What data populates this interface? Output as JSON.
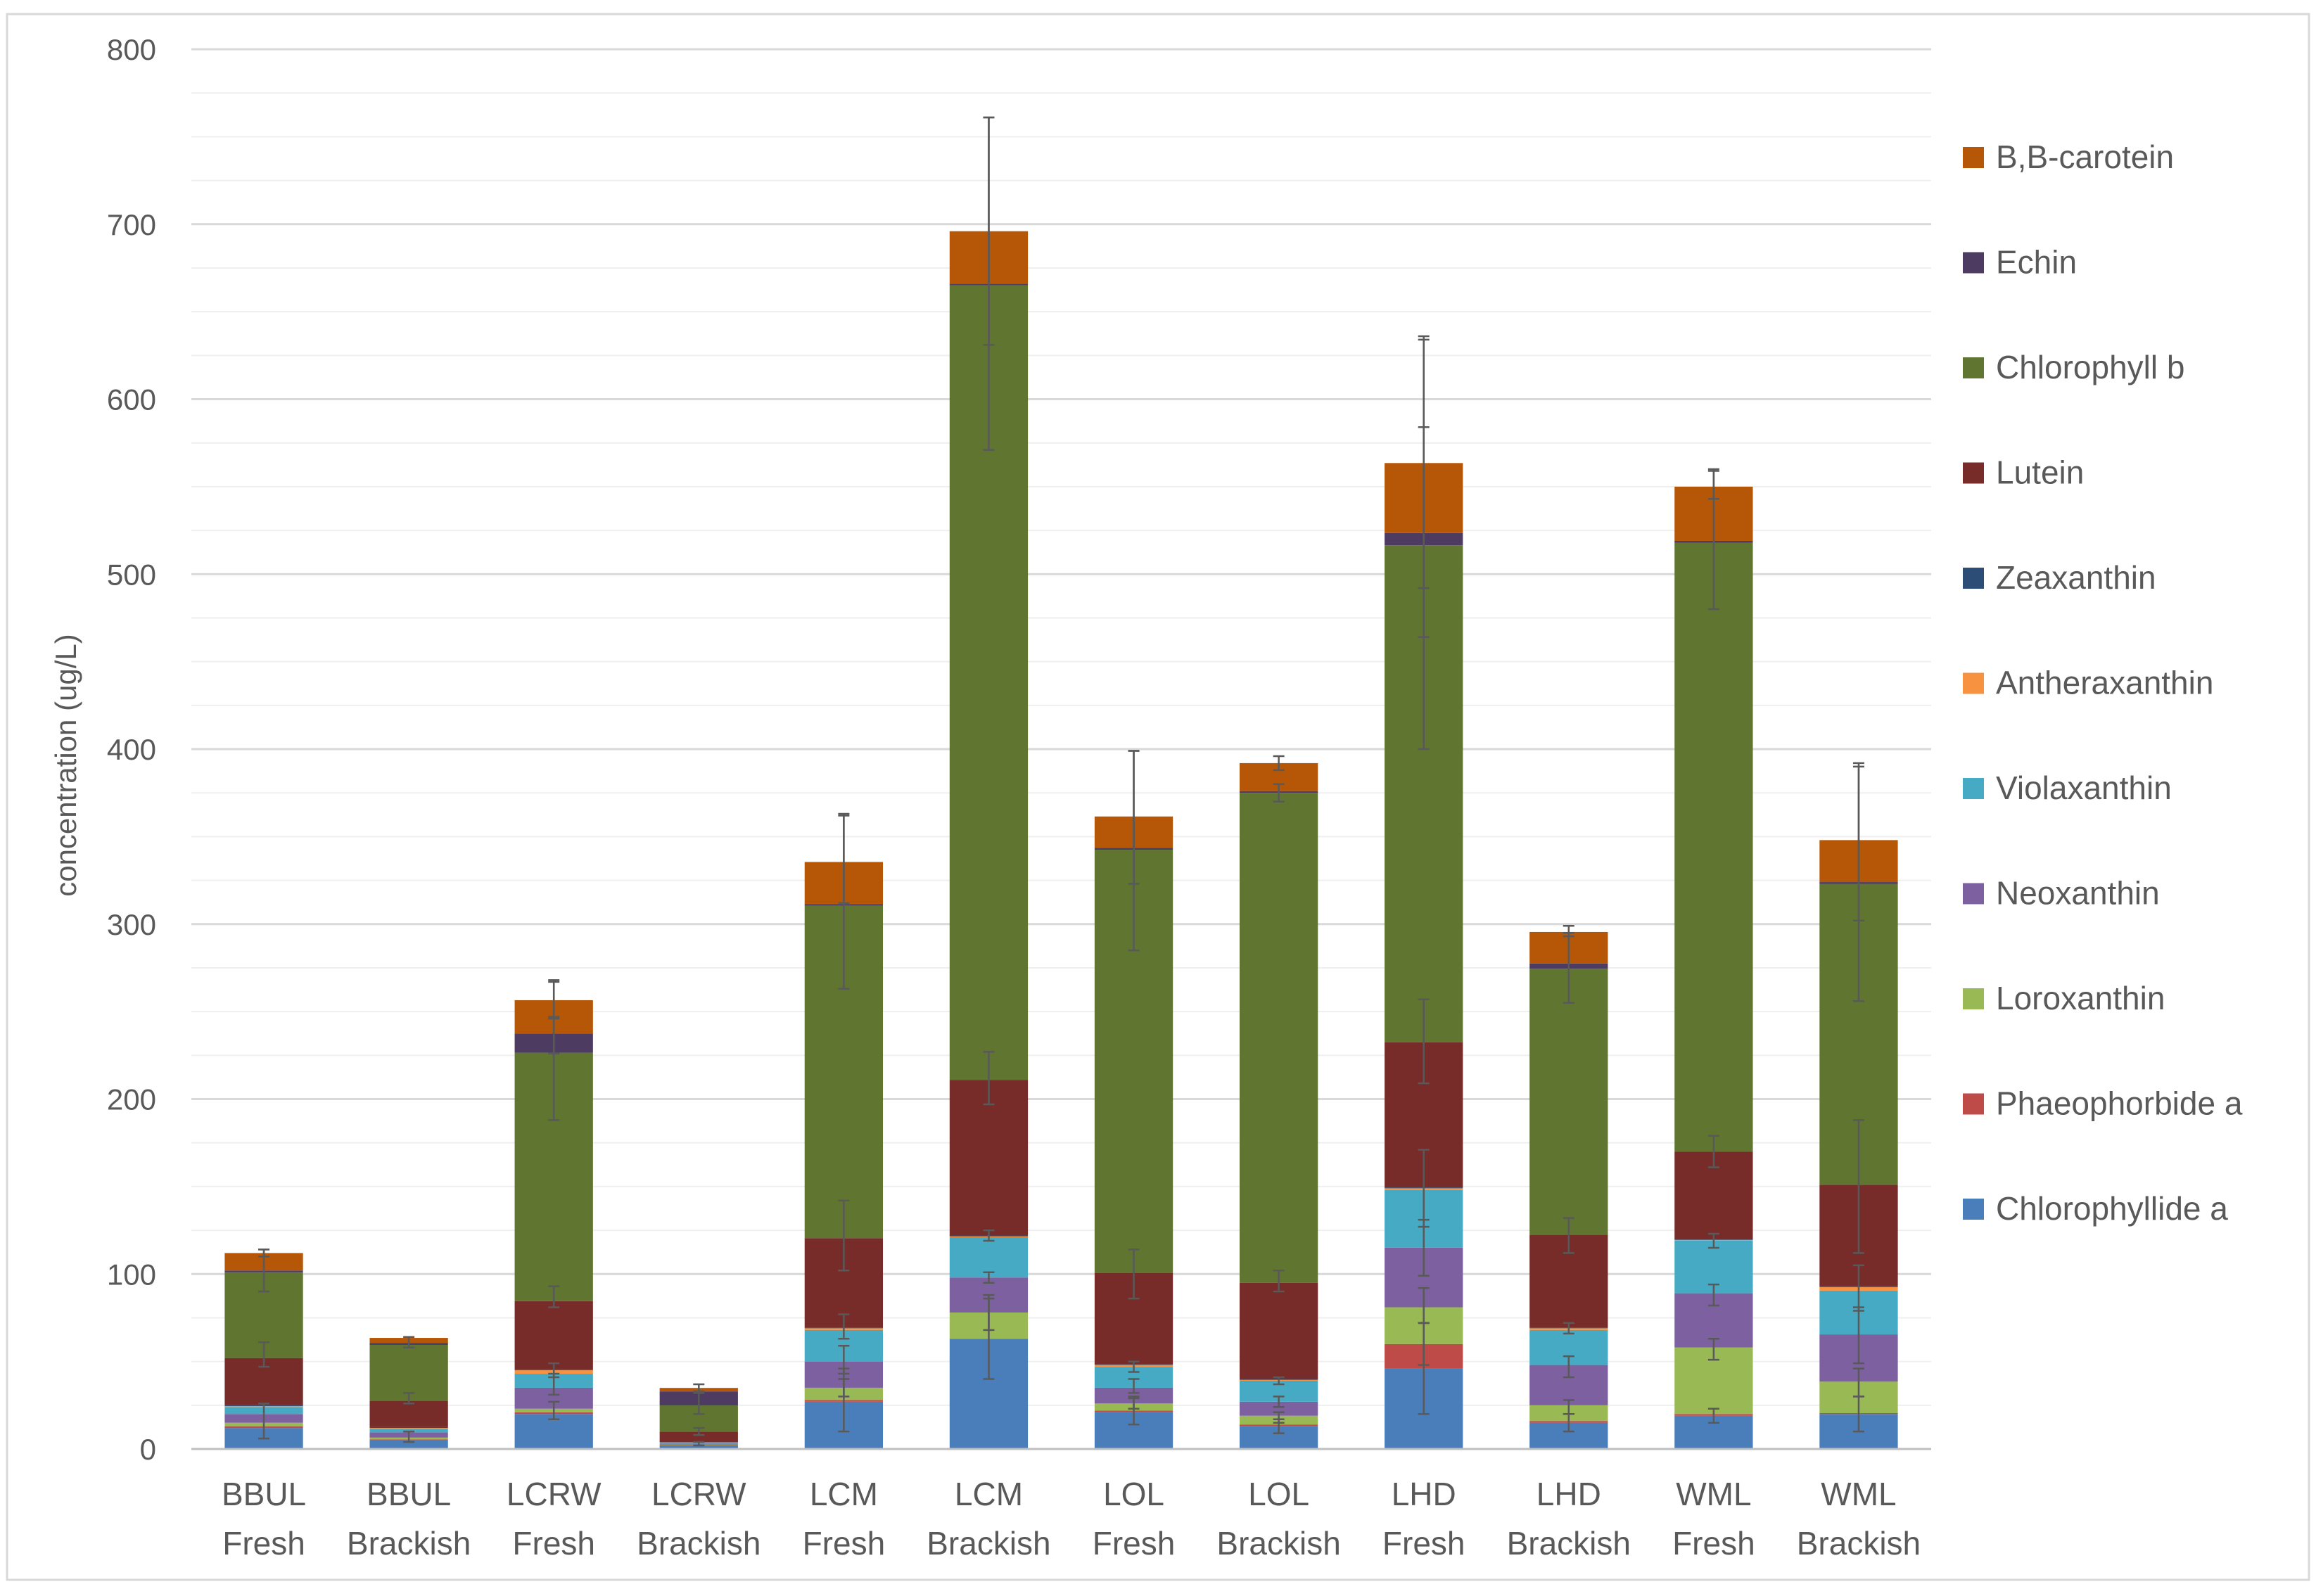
{
  "chart_data": {
    "type": "bar",
    "stacked": true,
    "title": "",
    "xlabel": "",
    "ylabel": "concentration (ug/L)",
    "ylim": [
      0,
      800
    ],
    "yticks": [
      0,
      100,
      200,
      300,
      400,
      500,
      600,
      700,
      800
    ],
    "grid": true,
    "legend_position": "right",
    "categories": [
      [
        "BBUL",
        "Fresh"
      ],
      [
        "BBUL",
        "Brackish"
      ],
      [
        "LCRW",
        "Fresh"
      ],
      [
        "LCRW",
        "Brackish"
      ],
      [
        "LCM",
        "Fresh"
      ],
      [
        "LCM",
        "Brackish"
      ],
      [
        "LOL",
        "Fresh"
      ],
      [
        "LOL",
        "Brackish"
      ],
      [
        "LHD",
        "Fresh"
      ],
      [
        "LHD",
        "Brackish"
      ],
      [
        "WML",
        "Fresh"
      ],
      [
        "WML",
        "Brackish"
      ]
    ],
    "series": [
      {
        "name": "Chlorophyllide a",
        "color": "#4a7ebb",
        "values": [
          12,
          5,
          20,
          2,
          27,
          63,
          21,
          13,
          46,
          15,
          19,
          20
        ]
      },
      {
        "name": "Phaeophorbide a",
        "color": "#be4b48",
        "values": [
          1,
          0.5,
          1,
          0.2,
          1,
          0,
          1,
          1,
          14,
          1,
          1,
          0.5
        ]
      },
      {
        "name": "Loroxanthin",
        "color": "#98b954",
        "values": [
          2,
          1,
          2,
          0.3,
          7,
          15,
          4,
          5,
          21,
          9,
          38,
          18
        ]
      },
      {
        "name": "Neoxanthin",
        "color": "#7d60a0",
        "values": [
          5,
          3,
          12,
          0.5,
          15,
          20,
          9,
          8,
          34,
          23,
          31,
          27
        ]
      },
      {
        "name": "Violaxanthin",
        "color": "#46aac5",
        "values": [
          4,
          2,
          8,
          0.5,
          18,
          23,
          12,
          12,
          33,
          20,
          30,
          25
        ]
      },
      {
        "name": "Antheraxanthin",
        "color": "#f69240",
        "values": [
          0.5,
          0.5,
          2,
          0.2,
          1,
          0.5,
          1,
          0.5,
          1,
          1,
          0.5,
          2
        ]
      },
      {
        "name": "Zeaxanthin",
        "color": "#2c4d75",
        "values": [
          0.5,
          0.5,
          0.5,
          0.2,
          0.5,
          0.5,
          0.5,
          0.5,
          0.5,
          0.5,
          0.5,
          0.5
        ]
      },
      {
        "name": "Lutein",
        "color": "#772c2a",
        "values": [
          27,
          15,
          39,
          6,
          51,
          89,
          52,
          55,
          83,
          53,
          50,
          58
        ]
      },
      {
        "name": "Chlorophyll b",
        "color": "#5f7530",
        "values": [
          49,
          32,
          142,
          15,
          190,
          454,
          242,
          280,
          284,
          152,
          348,
          172
        ]
      },
      {
        "name": "Echin",
        "color": "#4d3b62",
        "values": [
          1,
          1,
          11,
          8,
          1,
          1,
          1,
          1,
          7,
          3,
          1,
          1
        ]
      },
      {
        "name": "B,B-carotein",
        "color": "#b65708",
        "values": [
          10,
          3,
          19,
          2,
          24,
          30,
          18,
          16,
          40,
          18,
          31,
          24
        ]
      }
    ],
    "legend_order": [
      "B,B-carotein",
      "Echin",
      "Chlorophyll b",
      "Lutein",
      "Zeaxanthin",
      "Antheraxanthin",
      "Violaxanthin",
      "Neoxanthin",
      "Loroxanthin",
      "Phaeophorbide a",
      "Chlorophyllide a"
    ],
    "error_bars": [
      [
        [
          16,
          10
        ],
        [
          54,
          7
        ],
        [
          102,
          12
        ],
        [
          112,
          2
        ]
      ],
      [
        [
          7,
          3
        ],
        [
          29,
          3
        ],
        [
          61,
          3
        ]
      ],
      [
        [
          22,
          5
        ],
        [
          37,
          6
        ],
        [
          45,
          4
        ],
        [
          87,
          6
        ],
        [
          228,
          40
        ],
        [
          236,
          10
        ],
        [
          257,
          10
        ]
      ],
      [
        [
          3,
          1
        ],
        [
          10,
          2
        ],
        [
          26,
          6
        ],
        [
          35,
          2
        ]
      ],
      [
        [
          28,
          18
        ],
        [
          35,
          5
        ],
        [
          51,
          8
        ],
        [
          70,
          7
        ],
        [
          122,
          20
        ],
        [
          313,
          50
        ],
        [
          337,
          25
        ]
      ],
      [
        [
          63,
          23
        ],
        [
          78,
          10
        ],
        [
          98,
          3
        ],
        [
          122,
          3
        ],
        [
          212,
          15
        ],
        [
          666,
          95
        ],
        [
          696,
          65
        ]
      ],
      [
        [
          22,
          8
        ],
        [
          26,
          3
        ],
        [
          36,
          4
        ],
        [
          47,
          3
        ],
        [
          100,
          14
        ],
        [
          342,
          57
        ],
        [
          361,
          38
        ]
      ],
      [
        [
          13,
          4
        ],
        [
          18,
          3
        ],
        [
          27,
          3
        ],
        [
          39,
          2
        ],
        [
          96,
          6
        ],
        [
          375,
          5
        ],
        [
          392,
          4
        ]
      ],
      [
        [
          46,
          26
        ],
        [
          60,
          12
        ],
        [
          82,
          10
        ],
        [
          115,
          16
        ],
        [
          149,
          22
        ],
        [
          233,
          24
        ],
        [
          517,
          117
        ],
        [
          524,
          60
        ],
        [
          564,
          72
        ]
      ],
      [
        [
          15,
          5
        ],
        [
          24,
          4
        ],
        [
          47,
          6
        ],
        [
          69,
          3
        ],
        [
          122,
          10
        ],
        [
          275,
          20
        ],
        [
          296,
          3
        ]
      ],
      [
        [
          19,
          4
        ],
        [
          57,
          6
        ],
        [
          88,
          6
        ],
        [
          119,
          4
        ],
        [
          170,
          9
        ],
        [
          520,
          40
        ],
        [
          551,
          8
        ]
      ],
      [
        [
          20,
          10
        ],
        [
          38,
          8
        ],
        [
          65,
          16
        ],
        [
          92,
          13
        ],
        [
          150,
          38
        ],
        [
          323,
          67
        ],
        [
          347,
          45
        ]
      ]
    ]
  }
}
